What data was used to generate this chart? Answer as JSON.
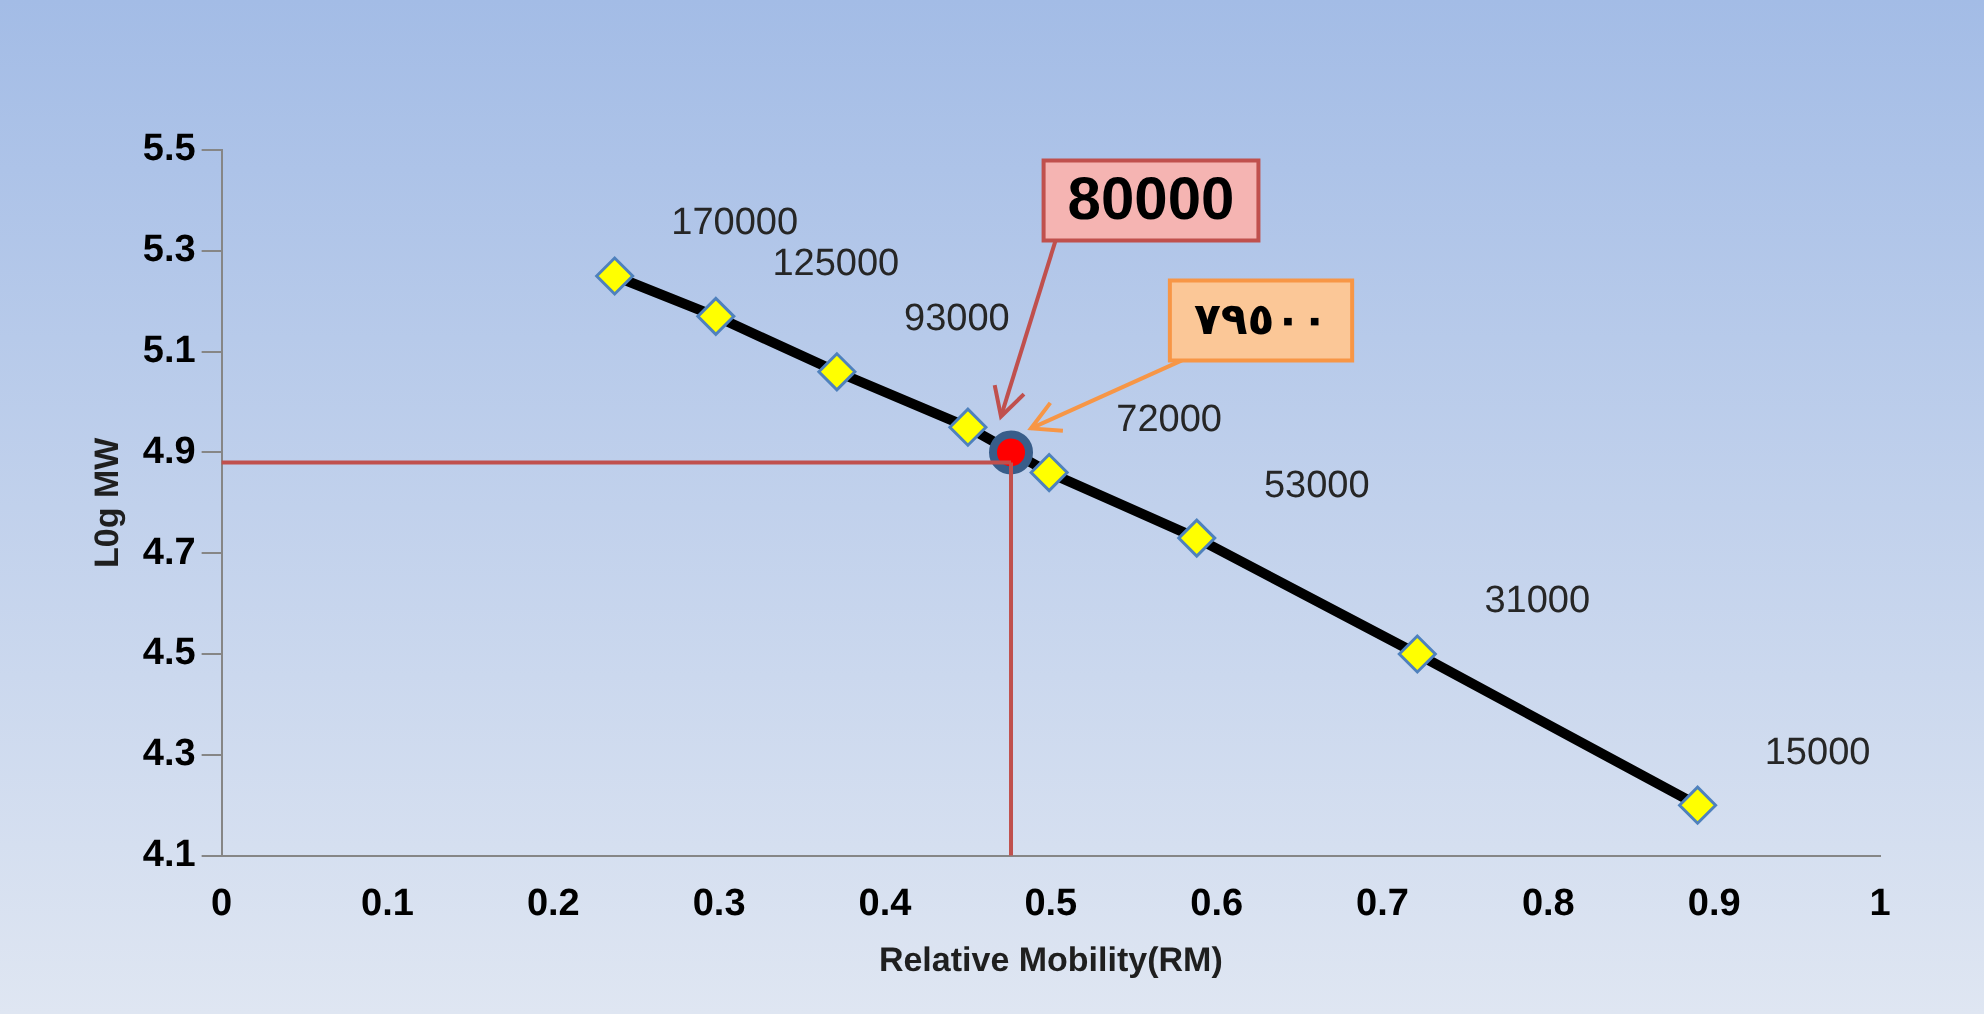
{
  "chart_data": {
    "type": "line",
    "xlabel": "Relative Mobility(RM)",
    "ylabel": "L0g MW",
    "xlim": [
      0,
      1
    ],
    "xticks": [
      0,
      0.1,
      0.2,
      0.3,
      0.4,
      0.5,
      0.6,
      0.7,
      0.8,
      0.9,
      1
    ],
    "ylim": [
      4.1,
      5.5
    ],
    "yticks": [
      4.1,
      4.3,
      4.5,
      4.7,
      4.9,
      5.1,
      5.3,
      5.5
    ],
    "grid": false,
    "legend": false,
    "series": [
      {
        "color": "#000000",
        "marker": "diamond",
        "line_style": "solid",
        "x": [
          0.237,
          0.298,
          0.371,
          0.45,
          0.499,
          0.588,
          0.721,
          0.89
        ],
        "values": [
          5.25,
          5.17,
          5.06,
          4.95,
          4.86,
          4.73,
          4.5,
          4.2
        ]
      },
      {
        "type": "scatter",
        "color": "#ff0000",
        "marker": "circle",
        "x": [
          0.476
        ],
        "values": [
          4.9
        ]
      }
    ],
    "ref_lines": [
      {
        "axis": "y",
        "value": 4.88,
        "color": "#c0504d"
      },
      {
        "axis": "x",
        "value": 0.476,
        "color": "#c0504d"
      }
    ],
    "annotations": [
      "80000",
      "٧٩٥٠٠",
      {
        "text": "170000",
        "x": 0.237,
        "y": 5.25
      },
      {
        "text": "125000",
        "x": 0.298,
        "y": 5.17
      },
      {
        "text": "93000",
        "x": 0.371,
        "y": 5.06
      },
      {
        "text": "72000",
        "x": 0.499,
        "y": 4.86
      },
      {
        "text": "53000",
        "x": 0.588,
        "y": 4.73
      },
      {
        "text": "31000",
        "x": 0.721,
        "y": 4.5
      },
      {
        "text": "15000",
        "x": 0.89,
        "y": 4.2
      }
    ]
  }
}
